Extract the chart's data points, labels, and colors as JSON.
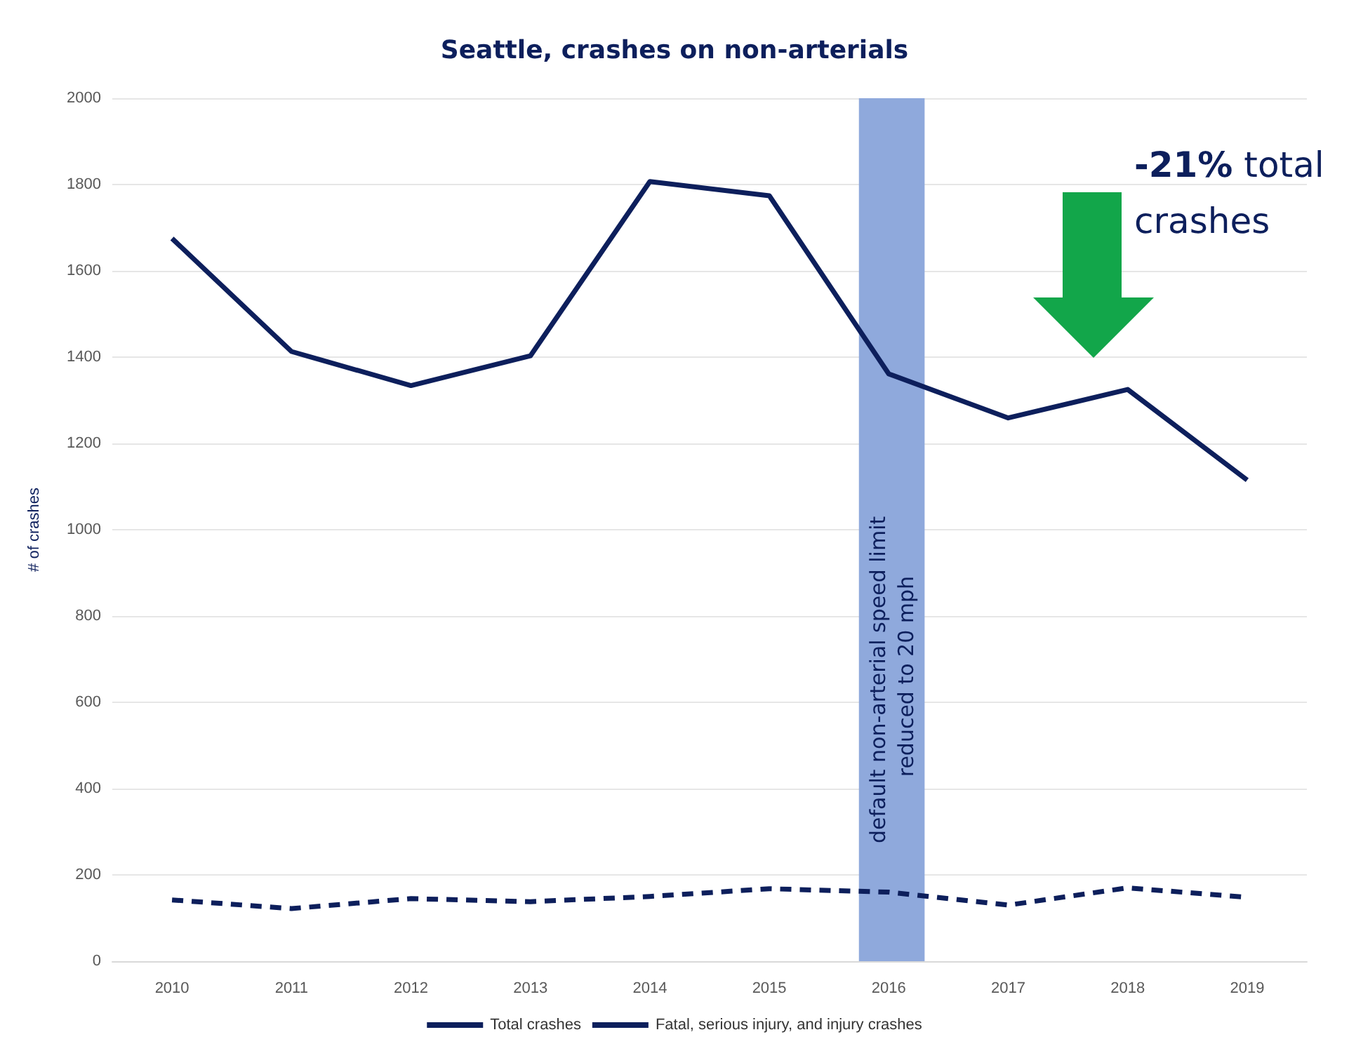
{
  "chart_data": {
    "type": "line",
    "title": "Seattle, crashes on non-arterials",
    "ylabel": "# of crashes",
    "x": [
      2010,
      2011,
      2012,
      2013,
      2014,
      2015,
      2016,
      2017,
      2018,
      2019
    ],
    "xlim": [
      2009.5,
      2019.5
    ],
    "xticks": [
      2010,
      2011,
      2012,
      2013,
      2014,
      2015,
      2016,
      2017,
      2018,
      2019
    ],
    "ylim": [
      0,
      2000
    ],
    "yticks": [
      0,
      200,
      400,
      600,
      800,
      1000,
      1200,
      1400,
      1600,
      1800,
      2000
    ],
    "series": [
      {
        "name": "Total crashes",
        "color": "#0d1f5c",
        "line_style": "solid",
        "values": [
          1675,
          1413,
          1334,
          1403,
          1807,
          1774,
          1361,
          1259,
          1325,
          1115
        ]
      },
      {
        "name": "Fatal, serious injury, and injury crashes",
        "color": "#0d1f5c",
        "line_style": "dashed",
        "values": [
          142,
          122,
          145,
          138,
          150,
          168,
          160,
          130,
          170,
          148
        ]
      }
    ],
    "bands": [
      {
        "axis": "x",
        "from": 2015.75,
        "to": 2016.3,
        "label": "default non-arterial speed limit reduced to 20 mph",
        "color": "#8fa9dc"
      }
    ],
    "annotations": [
      "-21% total crashes"
    ],
    "grid": "y",
    "legend": "bottom",
    "marker": "none"
  }
}
